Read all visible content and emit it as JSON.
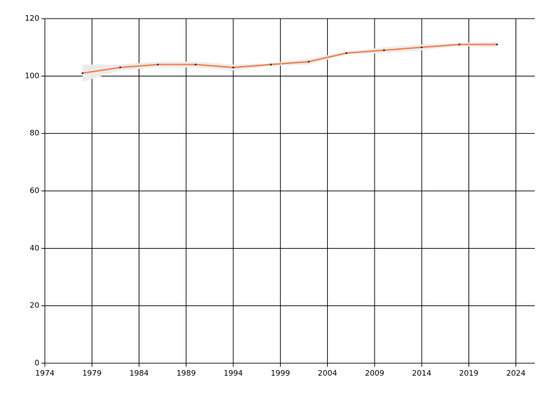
{
  "chart_data": {
    "type": "line",
    "x": [
      1978,
      1982,
      1986,
      1990,
      1994,
      1998,
      2002,
      2006,
      2010,
      2014,
      2018,
      2022
    ],
    "series": [
      {
        "color": "#f77b45",
        "values": [
          101,
          103,
          104,
          104,
          103,
          104,
          105,
          108,
          109,
          110,
          111,
          111
        ],
        "lower": [
          98,
          102,
          103,
          103,
          102,
          103.5,
          104,
          107.5,
          108,
          109,
          110.5,
          110
        ],
        "upper": [
          104,
          104,
          105,
          105,
          104,
          104.5,
          106,
          108.5,
          110,
          111,
          111.5,
          112
        ]
      }
    ],
    "band_color": "#ebebeb",
    "xlim": [
      1974,
      2026
    ],
    "xticks": [
      1974,
      1979,
      1984,
      1989,
      1994,
      1999,
      2004,
      2009,
      2014,
      2019,
      2024
    ],
    "ylim": [
      0,
      120
    ],
    "yticks": [
      0,
      20,
      40,
      60,
      80,
      100,
      120
    ],
    "grid": true
  }
}
